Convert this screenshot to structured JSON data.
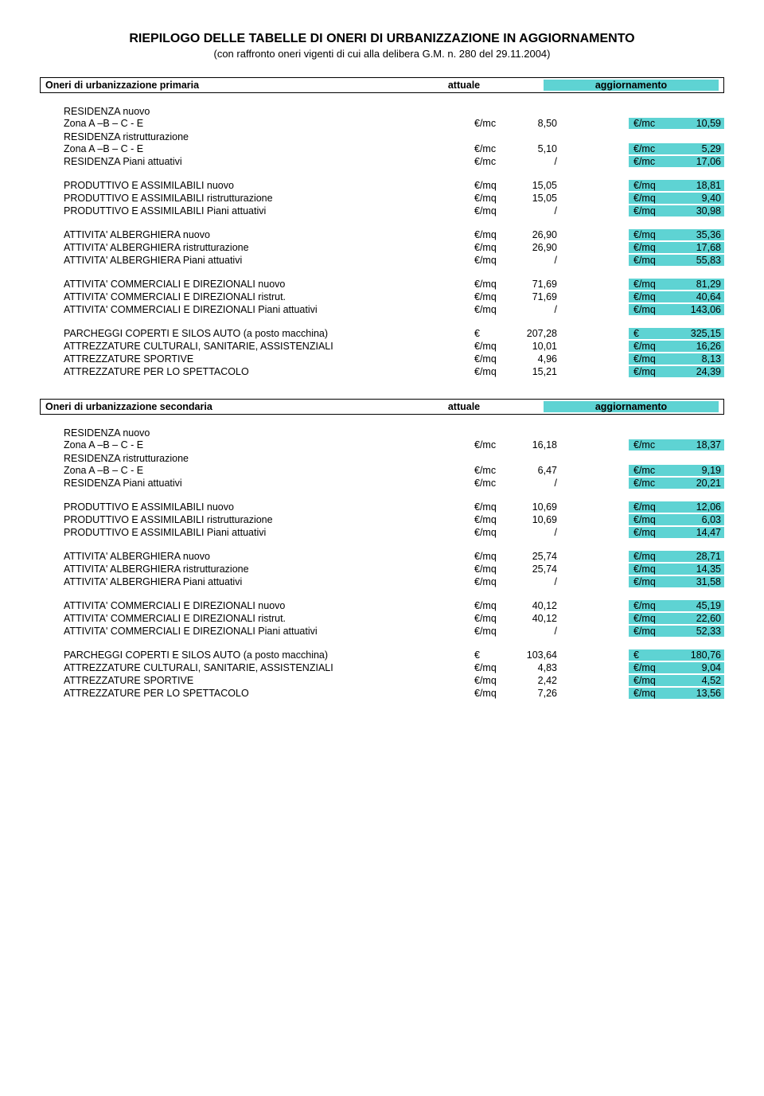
{
  "title": "RIEPILOGO DELLE TABELLE DI ONERI DI URBANIZZAZIONE IN AGGIORNAMENTO",
  "subtitle": "(con raffronto oneri vigenti di cui alla delibera G.M. n. 280 del 29.11.2004)",
  "highlight_color": "#5ed3d3",
  "sections": [
    {
      "header_label": "Oneri di urbanizzazione primaria",
      "col1": "attuale",
      "col2": "aggiornamento",
      "groups": [
        {
          "pre": "RESIDENZA nuovo",
          "rows": [
            {
              "desc": "Zona A –B – C - E",
              "u1": "€/mc",
              "v1": "8,50",
              "u2": "€/mc",
              "v2": "10,59"
            }
          ]
        },
        {
          "pre": "RESIDENZA ristrutturazione",
          "rows": [
            {
              "desc": "Zona A –B – C - E",
              "u1": "€/mc",
              "v1": "5,10",
              "u2": "€/mc",
              "v2": "5,29"
            },
            {
              "desc": "RESIDENZA Piani attuativi",
              "u1": "€/mc",
              "v1": "/",
              "u2": "€/mc",
              "v2": "17,06",
              "gap": true
            }
          ]
        },
        {
          "rows": [
            {
              "desc": "PRODUTTIVO E ASSIMILABILI nuovo",
              "u1": "€/mq",
              "v1": "15,05",
              "u2": "€/mq",
              "v2": "18,81"
            },
            {
              "desc": "PRODUTTIVO E ASSIMILABILI ristrutturazione",
              "u1": "€/mq",
              "v1": "15,05",
              "u2": "€/mq",
              "v2": "9,40"
            },
            {
              "desc": "PRODUTTIVO E ASSIMILABILI Piani attuativi",
              "u1": "€/mq",
              "v1": "/",
              "u2": "€/mq",
              "v2": "30,98",
              "gap": true
            }
          ]
        },
        {
          "rows": [
            {
              "desc": "ATTIVITA' ALBERGHIERA nuovo",
              "u1": "€/mq",
              "v1": "26,90",
              "u2": "€/mq",
              "v2": "35,36"
            },
            {
              "desc": "ATTIVITA' ALBERGHIERA ristrutturazione",
              "u1": "€/mq",
              "v1": "26,90",
              "u2": "€/mq",
              "v2": "17,68"
            },
            {
              "desc": "ATTIVITA' ALBERGHIERA Piani attuativi",
              "u1": "€/mq",
              "v1": "/",
              "u2": "€/mq",
              "v2": "55,83",
              "gap": true
            }
          ]
        },
        {
          "rows": [
            {
              "desc": "ATTIVITA' COMMERCIALI E DIREZIONALI nuovo",
              "u1": "€/mq",
              "v1": "71,69",
              "u2": "€/mq",
              "v2": "81,29"
            },
            {
              "desc": "ATTIVITA' COMMERCIALI E DIREZIONALI ristrut.",
              "u1": "€/mq",
              "v1": "71,69",
              "u2": "€/mq",
              "v2": "40,64"
            },
            {
              "desc": "ATTIVITA' COMMERCIALI E DIREZIONALI Piani attuativi",
              "u1": "€/mq",
              "v1": "/",
              "u2": "€/mq",
              "v2": "143,06",
              "gap": true
            }
          ]
        },
        {
          "rows": [
            {
              "desc": "PARCHEGGI COPERTI E SILOS AUTO (a posto macchina)",
              "u1": "€",
              "v1": "207,28",
              "u2": "€",
              "v2": "325,15"
            },
            {
              "desc": "ATTREZZATURE CULTURALI, SANITARIE, ASSISTENZIALI",
              "u1": "€/mq",
              "v1": "10,01",
              "u2": "€/mq",
              "v2": "16,26"
            },
            {
              "desc": "ATTREZZATURE SPORTIVE",
              "u1": "€/mq",
              "v1": "4,96",
              "u2": "€/mq",
              "v2": "8,13"
            },
            {
              "desc": "ATTREZZATURE PER LO SPETTACOLO",
              "u1": "€/mq",
              "v1": "15,21",
              "u2": "€/mq",
              "v2": "24,39",
              "gap": true
            }
          ]
        }
      ]
    },
    {
      "header_label": "Oneri di urbanizzazione secondaria",
      "col1": "attuale",
      "col2": "aggiornamento",
      "groups": [
        {
          "pre": "RESIDENZA nuovo",
          "rows": [
            {
              "desc": "Zona A –B – C - E",
              "u1": "€/mc",
              "v1": "16,18",
              "u2": "€/mc",
              "v2": "18,37"
            }
          ]
        },
        {
          "pre": "RESIDENZA ristrutturazione",
          "rows": [
            {
              "desc": "Zona A –B – C - E",
              "u1": "€/mc",
              "v1": "6,47",
              "u2": "€/mc",
              "v2": "9,19"
            },
            {
              "desc": "RESIDENZA Piani attuativi",
              "u1": "€/mc",
              "v1": "/",
              "u2": "€/mc",
              "v2": "20,21",
              "gap": true
            }
          ]
        },
        {
          "rows": [
            {
              "desc": "PRODUTTIVO E ASSIMILABILI nuovo",
              "u1": "€/mq",
              "v1": "10,69",
              "u2": "€/mq",
              "v2": "12,06"
            },
            {
              "desc": "PRODUTTIVO E ASSIMILABILI ristrutturazione",
              "u1": "€/mq",
              "v1": "10,69",
              "u2": "€/mq",
              "v2": "6,03"
            },
            {
              "desc": "PRODUTTIVO E ASSIMILABILI Piani attuativi",
              "u1": "€/mq",
              "v1": "/",
              "u2": "€/mq",
              "v2": "14,47",
              "gap": true
            }
          ]
        },
        {
          "rows": [
            {
              "desc": "ATTIVITA' ALBERGHIERA nuovo",
              "u1": "€/mq",
              "v1": "25,74",
              "u2": "€/mq",
              "v2": "28,71"
            },
            {
              "desc": "ATTIVITA' ALBERGHIERA ristrutturazione",
              "u1": "€/mq",
              "v1": "25,74",
              "u2": "€/mq",
              "v2": "14,35"
            },
            {
              "desc": "ATTIVITA' ALBERGHIERA Piani attuativi",
              "u1": "€/mq",
              "v1": "/",
              "u2": "€/mq",
              "v2": "31,58",
              "gap": true
            }
          ]
        },
        {
          "rows": [
            {
              "desc": "ATTIVITA' COMMERCIALI E DIREZIONALI nuovo",
              "u1": "€/mq",
              "v1": "40,12",
              "u2": "€/mq",
              "v2": "45,19"
            },
            {
              "desc": "ATTIVITA' COMMERCIALI E DIREZIONALI ristrut.",
              "u1": "€/mq",
              "v1": "40,12",
              "u2": "€/mq",
              "v2": "22,60"
            },
            {
              "desc": "ATTIVITA' COMMERCIALI E DIREZIONALI Piani attuativi",
              "u1": "€/mq",
              "v1": "/",
              "u2": "€/mq",
              "v2": "52,33",
              "gap": true
            }
          ]
        },
        {
          "rows": [
            {
              "desc": "PARCHEGGI COPERTI E SILOS AUTO (a posto macchina)",
              "u1": "€",
              "v1": "103,64",
              "u2": "€",
              "v2": "180,76"
            },
            {
              "desc": "ATTREZZATURE CULTURALI, SANITARIE, ASSISTENZIALI",
              "u1": "€/mq",
              "v1": "4,83",
              "u2": "€/mq",
              "v2": "9,04"
            },
            {
              "desc": "ATTREZZATURE SPORTIVE",
              "u1": "€/mq",
              "v1": "2,42",
              "u2": "€/mq",
              "v2": "4,52"
            },
            {
              "desc": "ATTREZZATURE PER LO SPETTACOLO",
              "u1": "€/mq",
              "v1": "7,26",
              "u2": "€/mq",
              "v2": "13,56"
            }
          ]
        }
      ]
    }
  ]
}
